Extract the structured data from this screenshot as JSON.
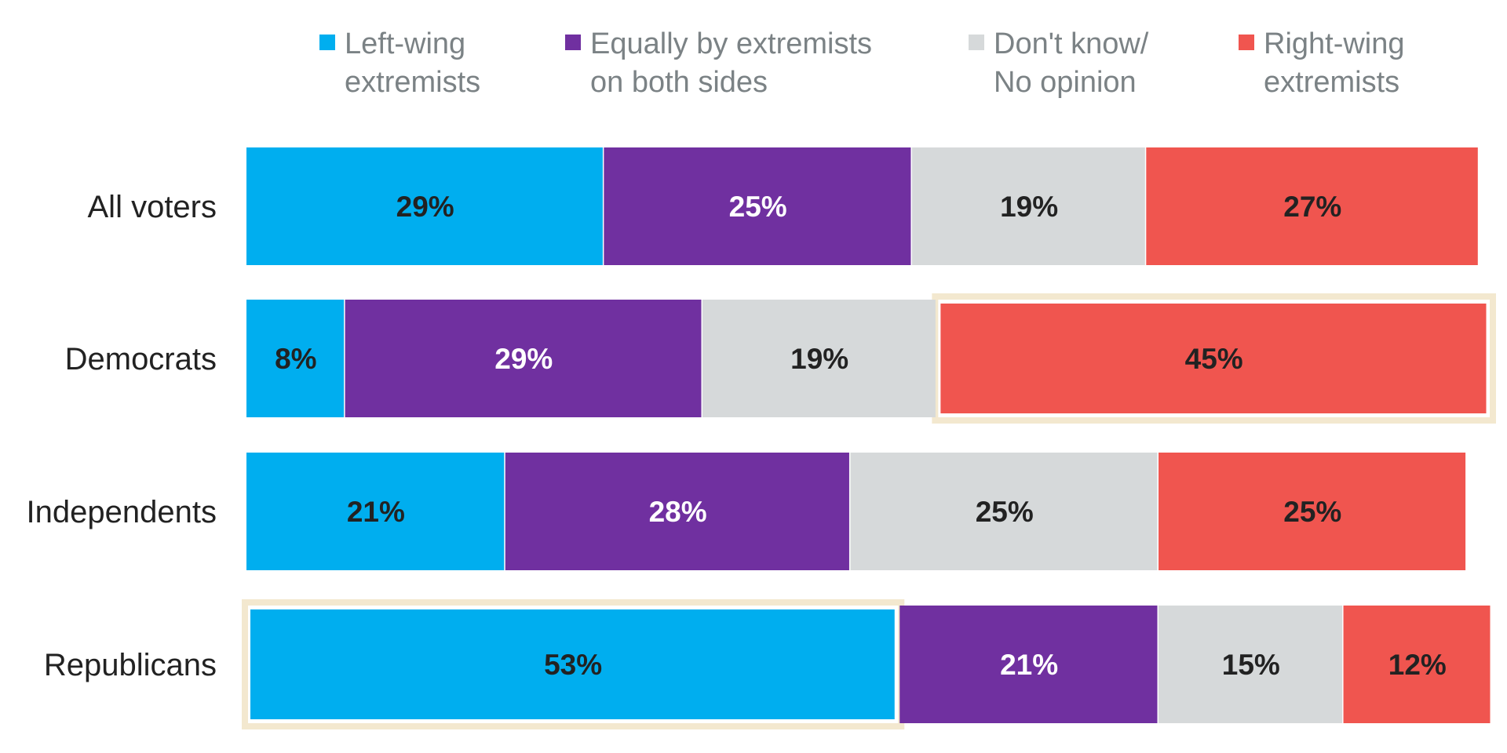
{
  "chart_data": {
    "type": "bar",
    "orientation": "horizontal",
    "stacked": true,
    "value_format": "percent",
    "categories": [
      "All voters",
      "Democrats",
      "Independents",
      "Republicans"
    ],
    "series": [
      {
        "name": "Left-wing extremists",
        "legend_lines": [
          "Left-wing",
          "extremists"
        ],
        "color": "#00aeef",
        "label_color": "#222222",
        "values": [
          29,
          8,
          21,
          53
        ]
      },
      {
        "name": "Equally by extremists on both sides",
        "legend_lines": [
          "Equally by extremists",
          "on both sides"
        ],
        "color": "#7030a0",
        "label_color": "#ffffff",
        "values": [
          25,
          29,
          28,
          21
        ]
      },
      {
        "name": "Don't know/ No opinion",
        "legend_lines": [
          "Don't know/",
          "No opinion"
        ],
        "color": "#d6d9da",
        "label_color": "#222222",
        "values": [
          19,
          19,
          25,
          15
        ]
      },
      {
        "name": "Right-wing extremists",
        "legend_lines": [
          "Right-wing",
          "extremists"
        ],
        "color": "#f0554f",
        "label_color": "#222222",
        "values": [
          27,
          45,
          25,
          12
        ]
      }
    ],
    "highlights": [
      {
        "category": "Democrats",
        "series": "Right-wing extremists"
      },
      {
        "category": "Republicans",
        "series": "Left-wing extremists"
      }
    ],
    "highlight_color": "#f3e8cf",
    "legend_position": "top",
    "grid": false,
    "title": "",
    "xlabel": "",
    "ylabel": "",
    "xlim": [
      0,
      101
    ]
  }
}
